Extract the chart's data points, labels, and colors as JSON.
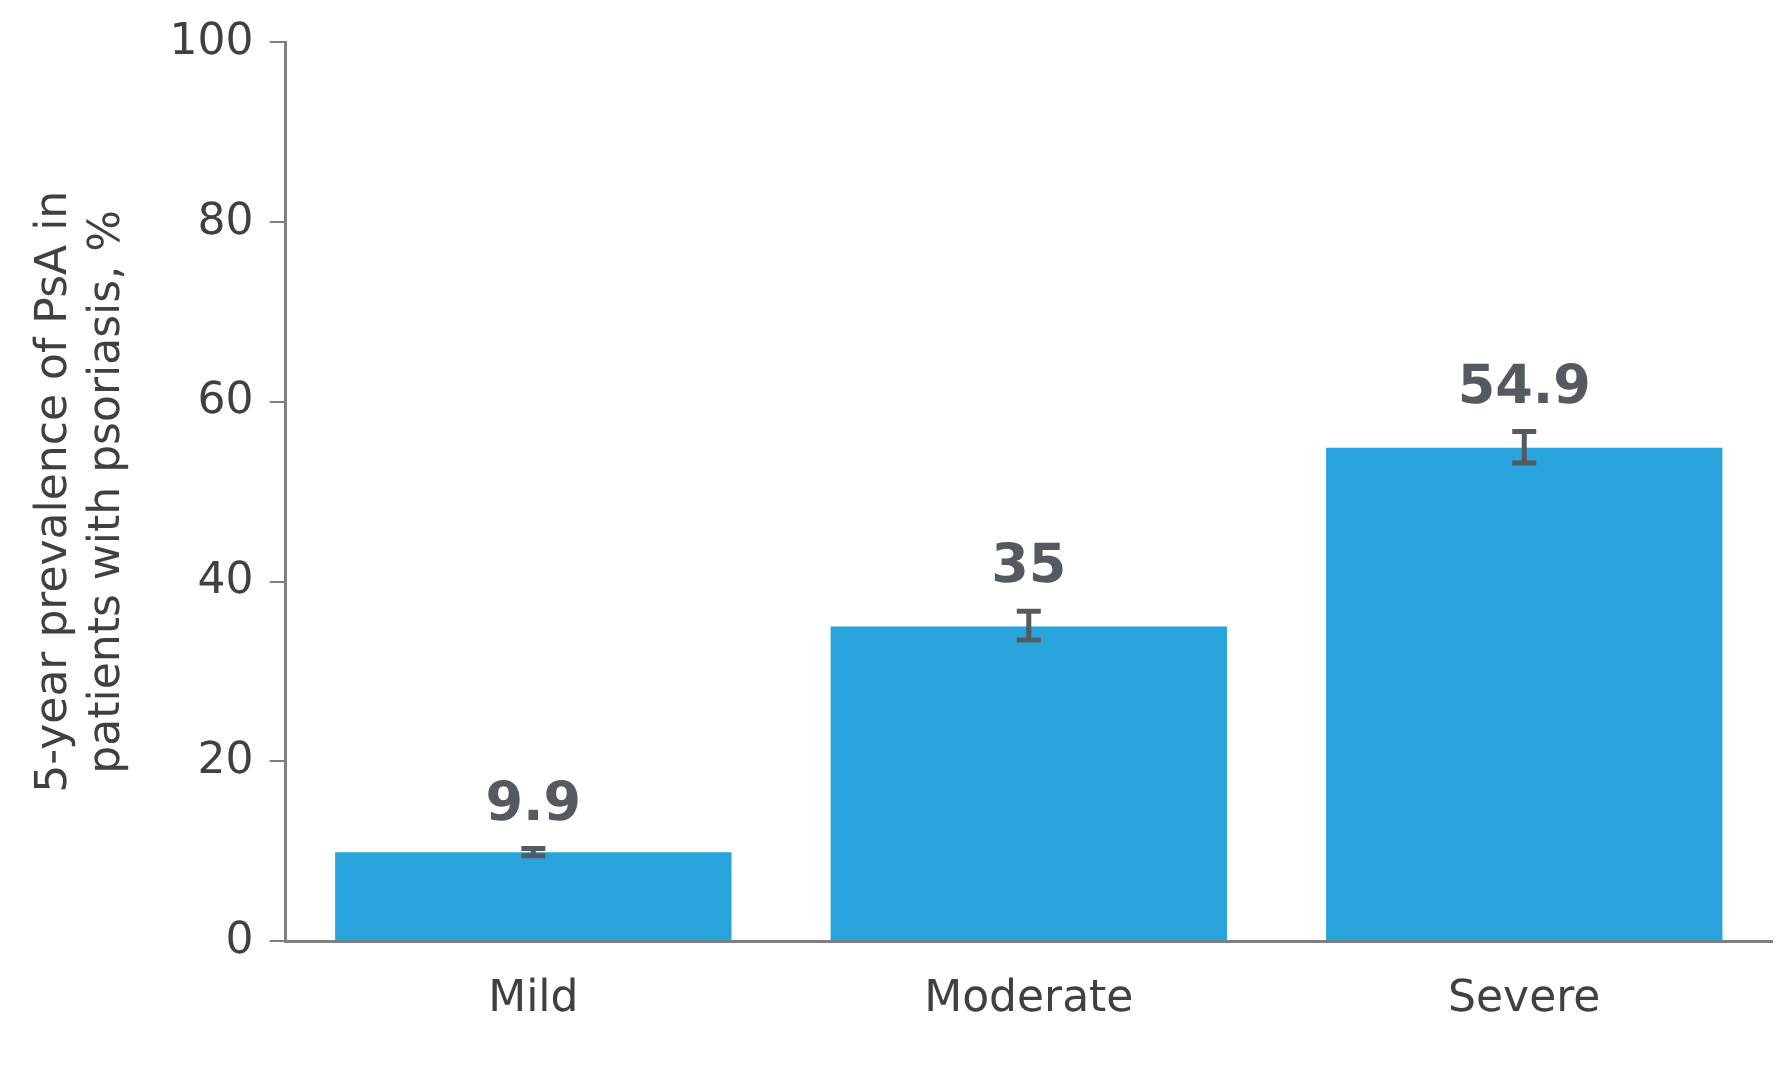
{
  "chart_data": {
    "type": "bar",
    "ylabel": "5-year prevalence of PsA in patients with psoriasis, %",
    "categories": [
      "Mild",
      "Moderate",
      "Severe"
    ],
    "values": [
      9.9,
      35,
      54.9
    ],
    "errors": [
      [
        9.5,
        10.3
      ],
      [
        33.5,
        36.7
      ],
      [
        53.2,
        56.7
      ]
    ],
    "color": "#29a3db",
    "ylim": [
      0,
      100
    ],
    "yticks": [
      0,
      20,
      40,
      60,
      80,
      100
    ],
    "grid": false,
    "legend": false,
    "data_labels": true
  }
}
